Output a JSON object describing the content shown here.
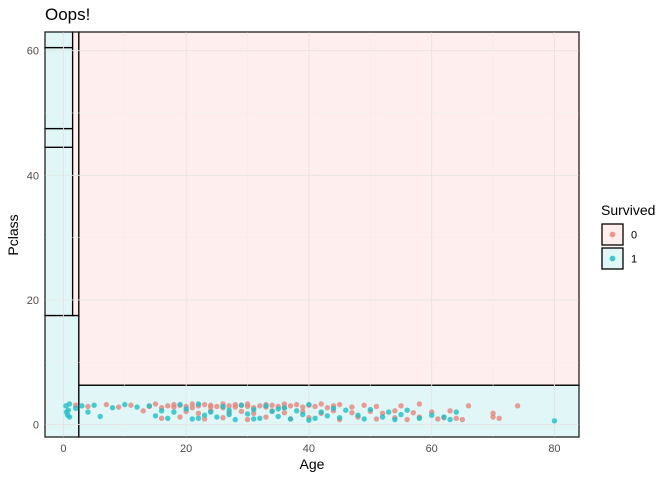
{
  "chart_data": {
    "type": "scatter",
    "title": "Oops!",
    "xlabel": "Age",
    "ylabel": "Pclass",
    "xlim": [
      -3,
      84
    ],
    "ylim": [
      -2,
      63
    ],
    "x_ticks": [
      0,
      20,
      40,
      60,
      80
    ],
    "y_ticks": [
      0,
      20,
      40,
      60
    ],
    "grid": true,
    "legend": {
      "title": "Survived",
      "placement": "right",
      "entries": [
        {
          "label": "0",
          "point_color": "#E8857C",
          "fill_color": "#FFEEED"
        },
        {
          "label": "1",
          "point_color": "#1EBFC4",
          "fill_color": "#E1F6F7"
        }
      ]
    },
    "regions": [
      {
        "class": "0",
        "x": [
          2.5,
          84
        ],
        "y": [
          6.3,
          63
        ]
      },
      {
        "class": "1",
        "x": [
          2.5,
          84
        ],
        "y": [
          -2,
          6.3
        ]
      },
      {
        "class": "1",
        "x": [
          -3,
          2.5
        ],
        "y": [
          -2,
          17.5
        ]
      },
      {
        "class": "1",
        "x": [
          -3,
          1.5
        ],
        "y": [
          17.5,
          44.5
        ]
      },
      {
        "class": "1",
        "x": [
          -3,
          1.5
        ],
        "y": [
          44.5,
          47.5
        ]
      },
      {
        "class": "1",
        "x": [
          -3,
          1.5
        ],
        "y": [
          47.5,
          60.5
        ]
      },
      {
        "class": "1",
        "x": [
          -3,
          1.5
        ],
        "y": [
          60.5,
          63
        ]
      },
      {
        "class": "0",
        "x": [
          1.5,
          2.5
        ],
        "y": [
          17.5,
          63
        ]
      }
    ],
    "series": [
      {
        "name": "0",
        "color": "#E8857C",
        "points": [
          [
            2,
            3.1
          ],
          [
            4,
            2.9
          ],
          [
            7,
            3.2
          ],
          [
            9,
            2.8
          ],
          [
            11,
            3.1
          ],
          [
            14,
            2.9
          ],
          [
            15,
            3.3
          ],
          [
            16,
            2.7
          ],
          [
            17,
            3.0
          ],
          [
            18,
            3.2
          ],
          [
            18,
            2.8
          ],
          [
            19,
            3.1
          ],
          [
            20,
            2.9
          ],
          [
            21,
            3.3
          ],
          [
            21,
            2.7
          ],
          [
            22,
            3.0
          ],
          [
            23,
            3.2
          ],
          [
            24,
            2.8
          ],
          [
            24,
            3.1
          ],
          [
            25,
            2.9
          ],
          [
            26,
            3.3
          ],
          [
            26,
            2.7
          ],
          [
            27,
            3.0
          ],
          [
            28,
            3.2
          ],
          [
            28,
            2.8
          ],
          [
            29,
            3.1
          ],
          [
            30,
            2.9
          ],
          [
            30,
            3.3
          ],
          [
            31,
            2.7
          ],
          [
            32,
            3.0
          ],
          [
            33,
            3.2
          ],
          [
            33,
            2.8
          ],
          [
            34,
            3.1
          ],
          [
            35,
            2.9
          ],
          [
            36,
            3.3
          ],
          [
            36,
            2.7
          ],
          [
            37,
            3.0
          ],
          [
            38,
            3.2
          ],
          [
            39,
            2.8
          ],
          [
            40,
            3.1
          ],
          [
            41,
            2.9
          ],
          [
            42,
            3.3
          ],
          [
            43,
            2.7
          ],
          [
            44,
            3.0
          ],
          [
            45,
            3.2
          ],
          [
            47,
            2.8
          ],
          [
            49,
            3.1
          ],
          [
            51,
            2.9
          ],
          [
            20,
            2.1
          ],
          [
            22,
            1.8
          ],
          [
            24,
            2.2
          ],
          [
            27,
            1.9
          ],
          [
            29,
            2.1
          ],
          [
            31,
            1.8
          ],
          [
            34,
            2.2
          ],
          [
            36,
            1.9
          ],
          [
            39,
            2.1
          ],
          [
            42,
            1.8
          ],
          [
            44,
            2.2
          ],
          [
            47,
            1.9
          ],
          [
            50,
            2.1
          ],
          [
            52,
            1.8
          ],
          [
            54,
            2.2
          ],
          [
            57,
            1.9
          ],
          [
            19,
            1.2
          ],
          [
            23,
            0.9
          ],
          [
            26,
            1.1
          ],
          [
            30,
            0.8
          ],
          [
            33,
            1.2
          ],
          [
            37,
            0.9
          ],
          [
            40,
            1.1
          ],
          [
            45,
            0.8
          ],
          [
            48,
            1.2
          ],
          [
            51,
            0.9
          ],
          [
            54,
            1.1
          ],
          [
            56,
            0.8
          ],
          [
            58,
            1.2
          ],
          [
            60,
            2.0
          ],
          [
            61,
            0.9
          ],
          [
            62,
            1.1
          ],
          [
            63,
            2.2
          ],
          [
            64,
            1.0
          ],
          [
            65,
            0.8
          ],
          [
            66,
            3.0
          ],
          [
            70,
            1.2
          ],
          [
            70,
            1.8
          ],
          [
            71,
            1.0
          ],
          [
            74,
            3.0
          ],
          [
            55,
            3.0
          ],
          [
            58,
            3.3
          ],
          [
            13,
            2.2
          ],
          [
            16,
            1.0
          ]
        ]
      },
      {
        "name": "1",
        "color": "#1EBFC4",
        "points": [
          [
            0.4,
            3.0
          ],
          [
            0.8,
            2.3
          ],
          [
            1,
            1.2
          ],
          [
            0.5,
            2.0
          ],
          [
            1,
            3.3
          ],
          [
            0.7,
            1.5
          ],
          [
            2,
            2.6
          ],
          [
            3,
            3.0
          ],
          [
            4,
            2.0
          ],
          [
            5,
            3.1
          ],
          [
            6,
            1.3
          ],
          [
            8,
            2.7
          ],
          [
            10,
            3.2
          ],
          [
            12,
            2.8
          ],
          [
            14,
            3.0
          ],
          [
            16,
            2.2
          ],
          [
            17,
            1.0
          ],
          [
            19,
            3.2
          ],
          [
            20,
            2.5
          ],
          [
            21,
            0.9
          ],
          [
            22,
            3.3
          ],
          [
            23,
            1.5
          ],
          [
            24,
            2.0
          ],
          [
            25,
            1.2
          ],
          [
            26,
            2.9
          ],
          [
            27,
            2.3
          ],
          [
            28,
            0.8
          ],
          [
            29,
            3.1
          ],
          [
            30,
            1.7
          ],
          [
            31,
            2.4
          ],
          [
            32,
            1.0
          ],
          [
            33,
            3.0
          ],
          [
            34,
            2.1
          ],
          [
            35,
            1.3
          ],
          [
            36,
            2.7
          ],
          [
            37,
            0.9
          ],
          [
            38,
            2.2
          ],
          [
            39,
            1.6
          ],
          [
            40,
            3.2
          ],
          [
            41,
            1.0
          ],
          [
            42,
            2.0
          ],
          [
            43,
            1.4
          ],
          [
            44,
            2.6
          ],
          [
            45,
            1.1
          ],
          [
            46,
            2.3
          ],
          [
            48,
            1.5
          ],
          [
            49,
            0.9
          ],
          [
            50,
            2.4
          ],
          [
            52,
            1.2
          ],
          [
            53,
            2.0
          ],
          [
            54,
            0.8
          ],
          [
            55,
            1.6
          ],
          [
            56,
            2.3
          ],
          [
            58,
            1.0
          ],
          [
            60,
            1.5
          ],
          [
            62,
            1.2
          ],
          [
            63,
            0.8
          ],
          [
            64,
            2.0
          ],
          [
            80,
            0.6
          ],
          [
            15,
            1.4
          ],
          [
            18,
            2.0
          ],
          [
            22,
            1.0
          ],
          [
            27,
            1.6
          ],
          [
            31,
            0.9
          ],
          [
            35,
            2.5
          ],
          [
            40,
            0.7
          ]
        ]
      }
    ]
  }
}
